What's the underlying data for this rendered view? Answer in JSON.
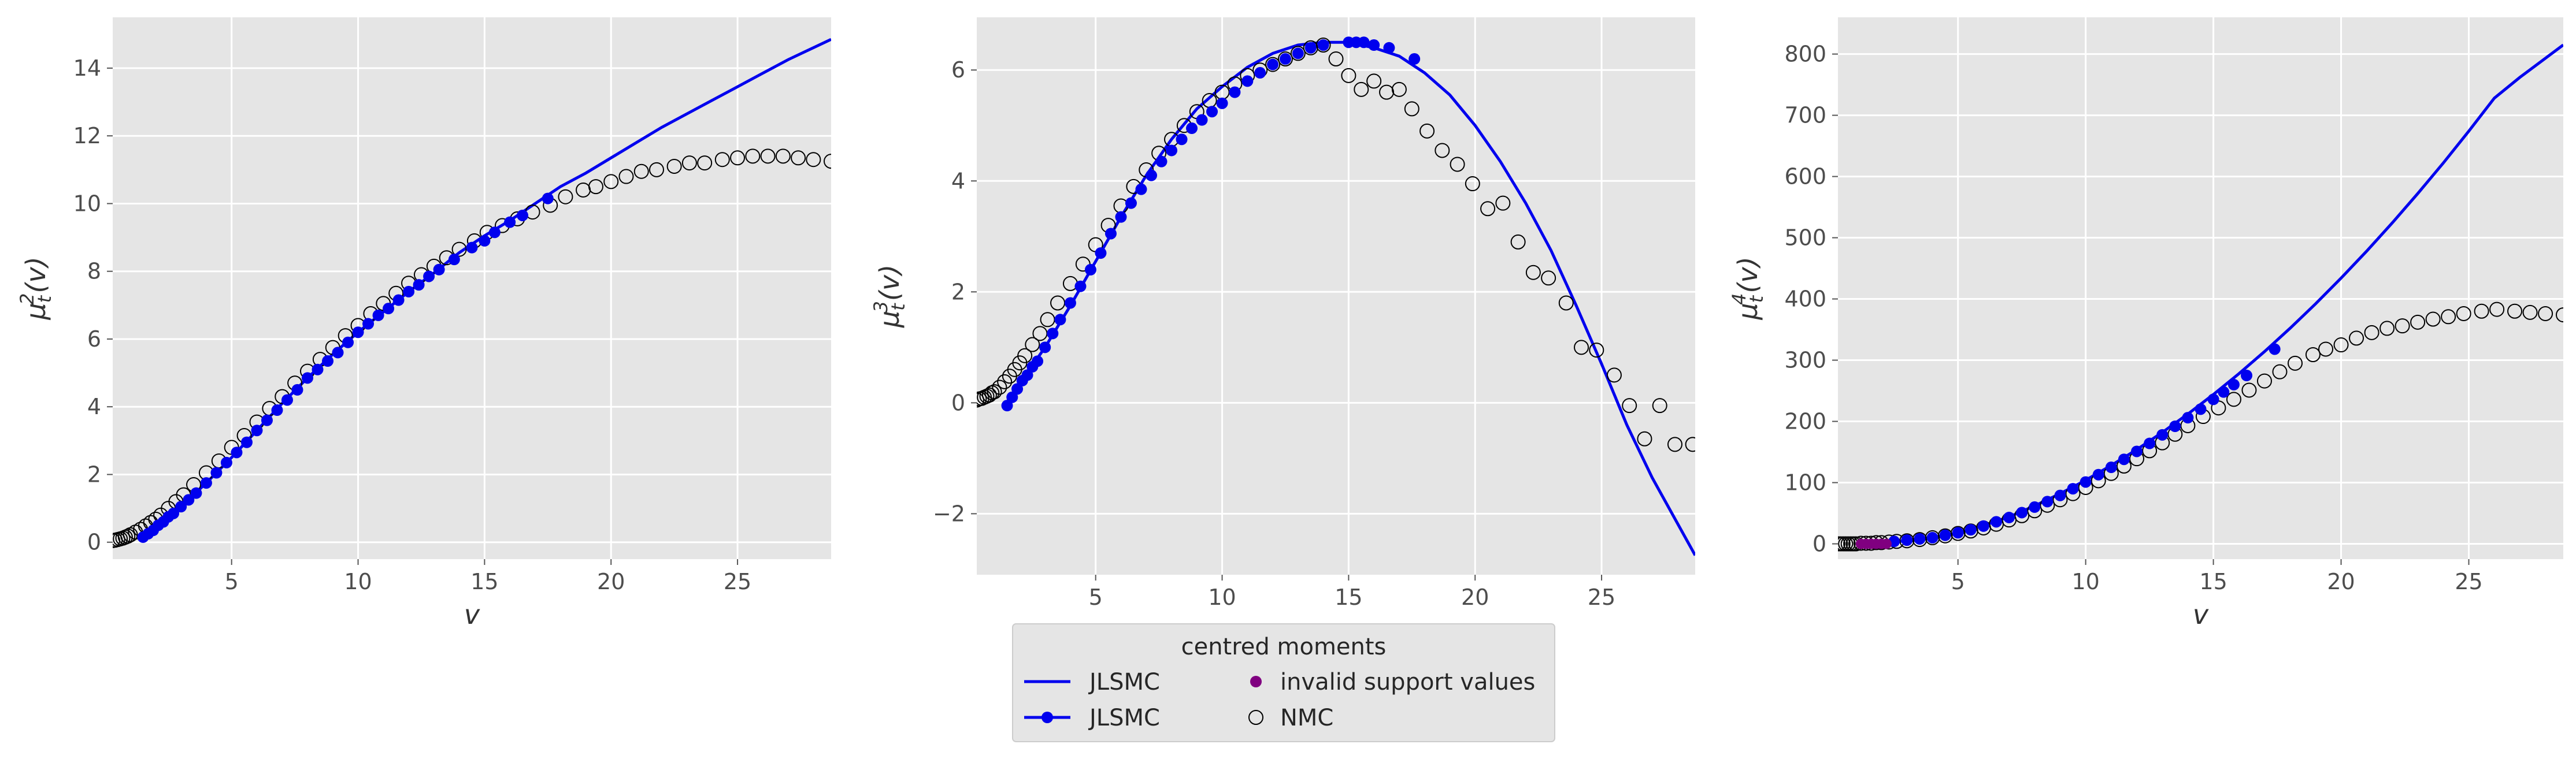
{
  "chart_data": [
    {
      "type": "scatter",
      "xlabel": "v",
      "ylabel": "μ_t^2(v)",
      "xlim": [
        0.3,
        28.7
      ],
      "ylim": [
        -0.5,
        15.5
      ],
      "xticks": [
        5,
        10,
        15,
        20,
        25
      ],
      "yticks": [
        0,
        2,
        4,
        6,
        8,
        10,
        12,
        14
      ],
      "grid": true,
      "curve": {
        "name": "JLSMC",
        "color": "#0000ee",
        "x": [
          1.5,
          2,
          3,
          4,
          5,
          6,
          7,
          8,
          9,
          10,
          11,
          12,
          13,
          14,
          15,
          16,
          17,
          18,
          19,
          20,
          21,
          22,
          23,
          24,
          25,
          26,
          27,
          28.7
        ],
        "y": [
          0.15,
          0.45,
          1.05,
          1.75,
          2.5,
          3.3,
          4.1,
          4.85,
          5.55,
          6.2,
          6.8,
          7.4,
          7.95,
          8.55,
          9.05,
          9.5,
          10.0,
          10.5,
          10.9,
          11.35,
          11.8,
          12.25,
          12.65,
          13.05,
          13.45,
          13.85,
          14.25,
          14.85
        ]
      },
      "jlsmc_points": {
        "name": "JLSMC",
        "color": "#0000ee",
        "x": [
          1.5,
          1.7,
          1.9,
          2.1,
          2.3,
          2.5,
          2.7,
          3.0,
          3.3,
          3.6,
          4.0,
          4.4,
          4.8,
          5.2,
          5.6,
          6.0,
          6.4,
          6.8,
          7.2,
          7.6,
          8.0,
          8.4,
          8.8,
          9.2,
          9.6,
          10.0,
          10.4,
          10.8,
          11.2,
          11.6,
          12.0,
          12.4,
          12.8,
          13.2,
          13.8,
          14.5,
          15.0,
          15.4,
          16.0,
          16.5,
          17.5
        ],
        "y": [
          0.15,
          0.25,
          0.35,
          0.5,
          0.6,
          0.75,
          0.85,
          1.05,
          1.25,
          1.45,
          1.75,
          2.05,
          2.35,
          2.65,
          2.95,
          3.3,
          3.6,
          3.9,
          4.2,
          4.5,
          4.85,
          5.1,
          5.35,
          5.6,
          5.9,
          6.2,
          6.45,
          6.7,
          6.9,
          7.15,
          7.4,
          7.6,
          7.85,
          8.05,
          8.35,
          8.7,
          8.9,
          9.15,
          9.45,
          9.65,
          10.15
        ]
      },
      "nmc_points": {
        "name": "NMC",
        "x": [
          0.3,
          0.4,
          0.5,
          0.6,
          0.7,
          0.8,
          0.9,
          1.0,
          1.2,
          1.4,
          1.6,
          1.8,
          2.0,
          2.2,
          2.5,
          2.8,
          3.1,
          3.5,
          4.0,
          4.5,
          5.0,
          5.5,
          6.0,
          6.5,
          7.0,
          7.5,
          8.0,
          8.5,
          9.0,
          9.5,
          10.0,
          10.5,
          11.0,
          11.5,
          12.0,
          12.5,
          13.0,
          13.5,
          14.0,
          14.6,
          15.1,
          15.7,
          16.3,
          16.9,
          17.6,
          18.2,
          18.9,
          19.4,
          20.0,
          20.6,
          21.2,
          21.8,
          22.5,
          23.1,
          23.7,
          24.4,
          25.0,
          25.6,
          26.2,
          26.8,
          27.4,
          28.0,
          28.7
        ],
        "y": [
          0.05,
          0.06,
          0.08,
          0.1,
          0.12,
          0.15,
          0.18,
          0.22,
          0.3,
          0.38,
          0.48,
          0.58,
          0.68,
          0.8,
          1.0,
          1.2,
          1.4,
          1.7,
          2.05,
          2.4,
          2.8,
          3.15,
          3.55,
          3.95,
          4.3,
          4.7,
          5.05,
          5.4,
          5.75,
          6.1,
          6.4,
          6.75,
          7.05,
          7.35,
          7.65,
          7.9,
          8.15,
          8.4,
          8.65,
          8.9,
          9.15,
          9.35,
          9.55,
          9.75,
          9.95,
          10.2,
          10.4,
          10.5,
          10.65,
          10.8,
          10.95,
          11.0,
          11.1,
          11.2,
          11.2,
          11.3,
          11.35,
          11.4,
          11.4,
          11.4,
          11.35,
          11.3,
          11.25
        ]
      }
    },
    {
      "type": "scatter",
      "xlabel": "v",
      "ylabel": "μ_t^3(v)",
      "xlim": [
        0.3,
        28.7
      ],
      "ylim": [
        -3.1,
        6.95
      ],
      "xticks": [
        5,
        10,
        15,
        20,
        25
      ],
      "yticks": [
        -2,
        0,
        2,
        4,
        6
      ],
      "grid": true,
      "curve": {
        "name": "JLSMC",
        "color": "#0000ee",
        "x": [
          1.5,
          2,
          3,
          4,
          5,
          6,
          7,
          8,
          9,
          10,
          11,
          12,
          13,
          14,
          15,
          16,
          17,
          18,
          19,
          20,
          21,
          22,
          23,
          24,
          25,
          26,
          27,
          28.7
        ],
        "y": [
          0.0,
          0.35,
          1.0,
          1.75,
          2.55,
          3.35,
          4.1,
          4.75,
          5.3,
          5.7,
          6.05,
          6.3,
          6.45,
          6.5,
          6.5,
          6.4,
          6.25,
          5.95,
          5.55,
          5.0,
          4.35,
          3.6,
          2.75,
          1.75,
          0.7,
          -0.4,
          -1.35,
          -2.75
        ]
      },
      "jlsmc_points": {
        "name": "JLSMC",
        "color": "#0000ee",
        "x": [
          1.5,
          1.7,
          1.9,
          2.1,
          2.3,
          2.5,
          2.7,
          3.0,
          3.3,
          3.6,
          4.0,
          4.4,
          4.8,
          5.2,
          5.6,
          6.0,
          6.4,
          6.8,
          7.2,
          7.6,
          8.0,
          8.4,
          8.8,
          9.2,
          9.6,
          10.0,
          10.5,
          11.0,
          11.5,
          12.0,
          12.5,
          13.0,
          13.5,
          14.0,
          15.0,
          15.3,
          15.6,
          16.0,
          16.6,
          17.6
        ],
        "y": [
          -0.05,
          0.1,
          0.25,
          0.4,
          0.5,
          0.65,
          0.75,
          1.0,
          1.25,
          1.5,
          1.8,
          2.1,
          2.4,
          2.7,
          3.05,
          3.35,
          3.6,
          3.85,
          4.1,
          4.35,
          4.55,
          4.75,
          4.95,
          5.1,
          5.25,
          5.4,
          5.6,
          5.8,
          5.95,
          6.1,
          6.2,
          6.3,
          6.4,
          6.45,
          6.5,
          6.5,
          6.5,
          6.45,
          6.4,
          6.2
        ]
      },
      "nmc_points": {
        "name": "NMC",
        "x": [
          0.3,
          0.4,
          0.5,
          0.6,
          0.7,
          0.8,
          0.9,
          1.0,
          1.2,
          1.4,
          1.6,
          1.8,
          2.0,
          2.2,
          2.5,
          2.8,
          3.1,
          3.5,
          4.0,
          4.5,
          5.0,
          5.5,
          6.0,
          6.5,
          7.0,
          7.5,
          8.0,
          8.5,
          9.0,
          9.5,
          10.0,
          10.5,
          11.0,
          11.5,
          12.0,
          12.5,
          13.0,
          13.5,
          14.0,
          14.5,
          15.0,
          15.5,
          16.0,
          16.5,
          17.0,
          17.5,
          18.1,
          18.7,
          19.3,
          19.9,
          20.5,
          21.1,
          21.7,
          22.3,
          22.9,
          23.6,
          24.2,
          24.8,
          25.5,
          26.1,
          26.7,
          27.3,
          27.9,
          28.6
        ],
        "y": [
          0.05,
          0.07,
          0.08,
          0.1,
          0.12,
          0.14,
          0.18,
          0.2,
          0.28,
          0.38,
          0.48,
          0.6,
          0.72,
          0.85,
          1.05,
          1.25,
          1.5,
          1.8,
          2.15,
          2.5,
          2.85,
          3.2,
          3.55,
          3.9,
          4.2,
          4.5,
          4.75,
          5.0,
          5.25,
          5.45,
          5.6,
          5.75,
          5.9,
          6.0,
          6.1,
          6.2,
          6.3,
          6.4,
          6.45,
          6.2,
          5.9,
          5.65,
          5.8,
          5.6,
          5.65,
          5.3,
          4.9,
          4.55,
          4.3,
          3.95,
          3.5,
          3.6,
          2.9,
          2.35,
          2.25,
          1.8,
          1.0,
          0.95,
          0.5,
          -0.05,
          -0.65,
          -0.05,
          -0.75,
          -0.75
        ]
      }
    },
    {
      "type": "scatter",
      "xlabel": "v",
      "ylabel": "μ_t^4(v)",
      "xlim": [
        0.3,
        28.7
      ],
      "ylim": [
        -25,
        860
      ],
      "xticks": [
        5,
        10,
        15,
        20,
        25
      ],
      "yticks": [
        0,
        100,
        200,
        300,
        400,
        500,
        600,
        700,
        800
      ],
      "grid": true,
      "curve": {
        "name": "JLSMC",
        "color": "#0000ee",
        "x": [
          1.5,
          2,
          3,
          4,
          5,
          6,
          7,
          8,
          9,
          10,
          11,
          12,
          13,
          14,
          15,
          16,
          17,
          18,
          19,
          20,
          21,
          22,
          23,
          24,
          25,
          26,
          27,
          28.7
        ],
        "y": [
          1,
          2,
          5,
          10,
          18,
          30,
          44,
          62,
          82,
          104,
          128,
          154,
          182,
          212,
          244,
          278,
          314,
          352,
          392,
          434,
          478,
          524,
          572,
          622,
          674,
          728,
          762,
          815
        ]
      },
      "jlsmc_points": {
        "name": "JLSMC",
        "color": "#0000ee",
        "x": [
          2.5,
          3.0,
          3.5,
          4.0,
          4.5,
          5.0,
          5.5,
          6.0,
          6.5,
          7.0,
          7.5,
          8.0,
          8.5,
          9.0,
          9.5,
          10.0,
          10.5,
          11.0,
          11.5,
          12.0,
          12.5,
          13.0,
          13.5,
          14.0,
          14.5,
          15.0,
          15.4,
          15.8,
          16.3,
          17.4
        ],
        "y": [
          4,
          6,
          8,
          10,
          14,
          18,
          23,
          29,
          36,
          43,
          51,
          60,
          69,
          79,
          90,
          101,
          113,
          125,
          138,
          151,
          164,
          178,
          192,
          206,
          220,
          236,
          248,
          260,
          275,
          318
        ]
      },
      "invalid_points": {
        "name": "invalid support values",
        "color": "#800080",
        "x": [
          1.2,
          1.4,
          1.6,
          1.8,
          2.0,
          2.2
        ],
        "y": [
          0,
          0,
          0,
          0,
          0,
          0
        ]
      },
      "nmc_points": {
        "name": "NMC",
        "x": [
          0.3,
          0.4,
          0.5,
          0.6,
          0.7,
          0.8,
          0.9,
          1.0,
          1.2,
          1.4,
          1.6,
          1.8,
          2.0,
          2.3,
          2.6,
          3.0,
          3.5,
          4.0,
          4.5,
          5.0,
          5.5,
          6.0,
          6.5,
          7.0,
          7.5,
          8.0,
          8.5,
          9.0,
          9.5,
          10.0,
          10.5,
          11.0,
          11.5,
          12.0,
          12.5,
          13.0,
          13.5,
          14.0,
          14.6,
          15.2,
          15.8,
          16.4,
          17.0,
          17.6,
          18.2,
          18.9,
          19.4,
          20.0,
          20.6,
          21.2,
          21.8,
          22.4,
          23.0,
          23.6,
          24.2,
          24.8,
          25.5,
          26.1,
          26.8,
          27.4,
          28.0,
          28.7
        ],
        "y": [
          0,
          0,
          0,
          0,
          0,
          0,
          0,
          0,
          1,
          1,
          1,
          2,
          2,
          3,
          4,
          5,
          7,
          10,
          13,
          17,
          21,
          26,
          32,
          39,
          46,
          54,
          63,
          72,
          82,
          92,
          103,
          115,
          127,
          139,
          152,
          165,
          179,
          193,
          208,
          222,
          236,
          251,
          266,
          281,
          295,
          309,
          318,
          325,
          336,
          345,
          352,
          356,
          362,
          367,
          371,
          376,
          380,
          383,
          380,
          378,
          376,
          374
        ]
      }
    }
  ],
  "legend": {
    "title": "centred moments",
    "items": [
      {
        "label": "JLSMC",
        "kind": "line",
        "color": "#0000ee"
      },
      {
        "label": "JLSMC",
        "kind": "line-marker",
        "color": "#0000ee"
      },
      {
        "label": "invalid support values",
        "kind": "dot",
        "color": "#800080"
      },
      {
        "label": "NMC",
        "kind": "hollow",
        "color": "#000000"
      }
    ]
  }
}
